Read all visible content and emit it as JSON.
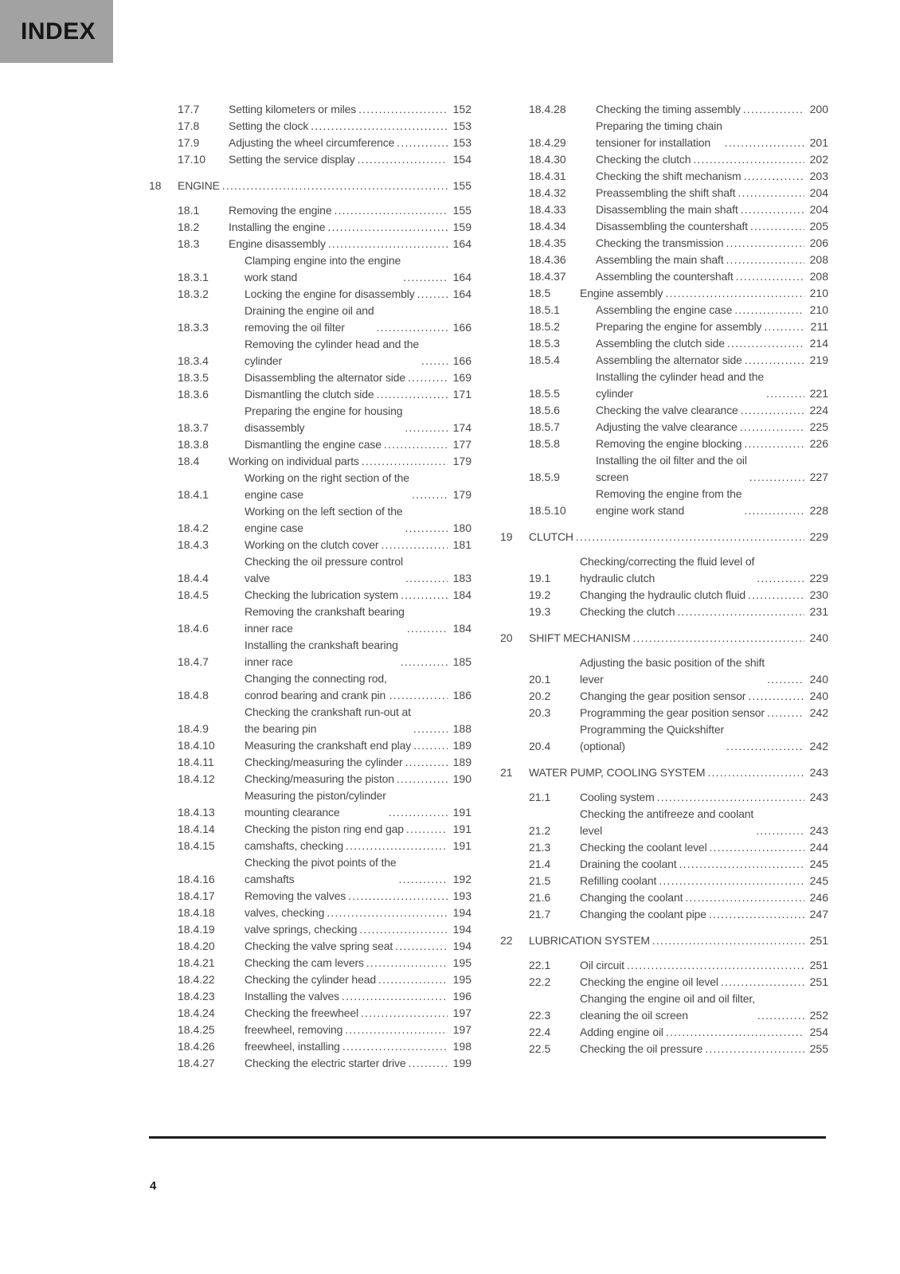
{
  "header": {
    "label": "INDEX"
  },
  "footer": {
    "page_number": "4"
  },
  "colors": {
    "index_tab_bg": "#a2a2a2",
    "body_text": "#474747"
  },
  "toc": {
    "left": [
      {
        "type": "sub2",
        "num": "17.7",
        "title_lines": [
          "Setting kilometers or miles"
        ],
        "page": "152"
      },
      {
        "type": "sub2",
        "num": "17.8",
        "title_lines": [
          "Setting the clock"
        ],
        "page": "153"
      },
      {
        "type": "sub2",
        "num": "17.9",
        "title_lines": [
          "Adjusting the wheel circumference"
        ],
        "page": "153"
      },
      {
        "type": "sub2",
        "num": "17.10",
        "title_lines": [
          "Setting the service display"
        ],
        "page": "154"
      },
      {
        "type": "chapter",
        "num": "18",
        "title_lines": [
          "ENGINE"
        ],
        "page": "155"
      },
      {
        "type": "sub2",
        "num": "18.1",
        "title_lines": [
          "Removing the engine"
        ],
        "page": "155"
      },
      {
        "type": "sub2",
        "num": "18.2",
        "title_lines": [
          "Installing the engine"
        ],
        "page": "159"
      },
      {
        "type": "sub2",
        "num": "18.3",
        "title_lines": [
          "Engine disassembly"
        ],
        "page": "164"
      },
      {
        "type": "sub3",
        "num": "18.3.1",
        "title_lines": [
          "Clamping engine into the engine",
          "work stand"
        ],
        "page": "164"
      },
      {
        "type": "sub3",
        "num": "18.3.2",
        "title_lines": [
          "Locking the engine for disassembly"
        ],
        "page": "164"
      },
      {
        "type": "sub3",
        "num": "18.3.3",
        "title_lines": [
          "Draining the engine oil and",
          "removing the oil filter"
        ],
        "page": "166"
      },
      {
        "type": "sub3",
        "num": "18.3.4",
        "title_lines": [
          "Removing the cylinder head and the",
          "cylinder"
        ],
        "page": "166"
      },
      {
        "type": "sub3",
        "num": "18.3.5",
        "title_lines": [
          "Disassembling the alternator side"
        ],
        "page": "169"
      },
      {
        "type": "sub3",
        "num": "18.3.6",
        "title_lines": [
          "Dismantling the clutch side"
        ],
        "page": "171"
      },
      {
        "type": "sub3",
        "num": "18.3.7",
        "title_lines": [
          "Preparing the engine for housing",
          "disassembly"
        ],
        "page": "174"
      },
      {
        "type": "sub3",
        "num": "18.3.8",
        "title_lines": [
          "Dismantling the engine case"
        ],
        "page": "177"
      },
      {
        "type": "sub2",
        "num": "18.4",
        "title_lines": [
          "Working on individual parts"
        ],
        "page": "179"
      },
      {
        "type": "sub3",
        "num": "18.4.1",
        "title_lines": [
          "Working on the right section of the",
          "engine case"
        ],
        "page": "179"
      },
      {
        "type": "sub3",
        "num": "18.4.2",
        "title_lines": [
          "Working on the left section of the",
          "engine case"
        ],
        "page": "180"
      },
      {
        "type": "sub3",
        "num": "18.4.3",
        "title_lines": [
          "Working on the clutch cover"
        ],
        "page": "181"
      },
      {
        "type": "sub3",
        "num": "18.4.4",
        "title_lines": [
          "Checking the oil pressure control",
          "valve"
        ],
        "page": "183"
      },
      {
        "type": "sub3",
        "num": "18.4.5",
        "title_lines": [
          "Checking the lubrication system"
        ],
        "page": "184"
      },
      {
        "type": "sub3",
        "num": "18.4.6",
        "title_lines": [
          "Removing the crankshaft bearing",
          "inner race"
        ],
        "page": "184"
      },
      {
        "type": "sub3",
        "num": "18.4.7",
        "title_lines": [
          "Installing the crankshaft bearing",
          "inner race"
        ],
        "page": "185"
      },
      {
        "type": "sub3",
        "num": "18.4.8",
        "title_lines": [
          "Changing the connecting rod,",
          "conrod bearing and crank pin"
        ],
        "page": "186"
      },
      {
        "type": "sub3",
        "num": "18.4.9",
        "title_lines": [
          "Checking the crankshaft run-out at",
          "the bearing pin"
        ],
        "page": "188"
      },
      {
        "type": "sub3",
        "num": "18.4.10",
        "title_lines": [
          "Measuring the crankshaft end play"
        ],
        "page": "189"
      },
      {
        "type": "sub3",
        "num": "18.4.11",
        "title_lines": [
          "Checking/measuring the cylinder"
        ],
        "page": "189"
      },
      {
        "type": "sub3",
        "num": "18.4.12",
        "title_lines": [
          "Checking/measuring the piston"
        ],
        "page": "190"
      },
      {
        "type": "sub3",
        "num": "18.4.13",
        "title_lines": [
          "Measuring the piston/cylinder",
          "mounting clearance"
        ],
        "page": "191"
      },
      {
        "type": "sub3",
        "num": "18.4.14",
        "title_lines": [
          "Checking the piston ring end gap"
        ],
        "page": "191"
      },
      {
        "type": "sub3",
        "num": "18.4.15",
        "title_lines": [
          "camshafts, checking"
        ],
        "page": "191"
      },
      {
        "type": "sub3",
        "num": "18.4.16",
        "title_lines": [
          "Checking the pivot points of the",
          "camshafts"
        ],
        "page": "192"
      },
      {
        "type": "sub3",
        "num": "18.4.17",
        "title_lines": [
          "Removing the valves"
        ],
        "page": "193"
      },
      {
        "type": "sub3",
        "num": "18.4.18",
        "title_lines": [
          "valves, checking"
        ],
        "page": "194"
      },
      {
        "type": "sub3",
        "num": "18.4.19",
        "title_lines": [
          "valve springs, checking"
        ],
        "page": "194"
      },
      {
        "type": "sub3",
        "num": "18.4.20",
        "title_lines": [
          "Checking the valve spring seat"
        ],
        "page": "194"
      },
      {
        "type": "sub3",
        "num": "18.4.21",
        "title_lines": [
          "Checking the cam levers"
        ],
        "page": "195"
      },
      {
        "type": "sub3",
        "num": "18.4.22",
        "title_lines": [
          "Checking the cylinder head"
        ],
        "page": "195"
      },
      {
        "type": "sub3",
        "num": "18.4.23",
        "title_lines": [
          "Installing the valves"
        ],
        "page": "196"
      },
      {
        "type": "sub3",
        "num": "18.4.24",
        "title_lines": [
          "Checking the freewheel"
        ],
        "page": "197"
      },
      {
        "type": "sub3",
        "num": "18.4.25",
        "title_lines": [
          "freewheel, removing"
        ],
        "page": "197"
      },
      {
        "type": "sub3",
        "num": "18.4.26",
        "title_lines": [
          "freewheel, installing"
        ],
        "page": "198"
      },
      {
        "type": "sub3",
        "num": "18.4.27",
        "title_lines": [
          "Checking the electric starter drive"
        ],
        "page": "199"
      }
    ],
    "right": [
      {
        "type": "sub3",
        "num": "18.4.28",
        "title_lines": [
          "Checking the timing assembly"
        ],
        "page": "200"
      },
      {
        "type": "sub3",
        "num": "18.4.29",
        "title_lines": [
          "Preparing the timing chain",
          "tensioner for installation"
        ],
        "page": "201"
      },
      {
        "type": "sub3",
        "num": "18.4.30",
        "title_lines": [
          "Checking the clutch"
        ],
        "page": "202"
      },
      {
        "type": "sub3",
        "num": "18.4.31",
        "title_lines": [
          "Checking the shift mechanism"
        ],
        "page": "203"
      },
      {
        "type": "sub3",
        "num": "18.4.32",
        "title_lines": [
          "Preassembling the shift shaft"
        ],
        "page": "204"
      },
      {
        "type": "sub3",
        "num": "18.4.33",
        "title_lines": [
          "Disassembling the main shaft"
        ],
        "page": "204"
      },
      {
        "type": "sub3",
        "num": "18.4.34",
        "title_lines": [
          "Disassembling the countershaft"
        ],
        "page": "205"
      },
      {
        "type": "sub3",
        "num": "18.4.35",
        "title_lines": [
          "Checking the transmission"
        ],
        "page": "206"
      },
      {
        "type": "sub3",
        "num": "18.4.36",
        "title_lines": [
          "Assembling the main shaft"
        ],
        "page": "208"
      },
      {
        "type": "sub3",
        "num": "18.4.37",
        "title_lines": [
          "Assembling the countershaft"
        ],
        "page": "208"
      },
      {
        "type": "sub2",
        "num": "18.5",
        "title_lines": [
          "Engine assembly"
        ],
        "page": "210"
      },
      {
        "type": "sub3",
        "num": "18.5.1",
        "title_lines": [
          "Assembling the engine case"
        ],
        "page": "210"
      },
      {
        "type": "sub3",
        "num": "18.5.2",
        "title_lines": [
          "Preparing the engine for assembly"
        ],
        "page": "211"
      },
      {
        "type": "sub3",
        "num": "18.5.3",
        "title_lines": [
          "Assembling the clutch side"
        ],
        "page": "214"
      },
      {
        "type": "sub3",
        "num": "18.5.4",
        "title_lines": [
          "Assembling the alternator side"
        ],
        "page": "219"
      },
      {
        "type": "sub3",
        "num": "18.5.5",
        "title_lines": [
          "Installing the cylinder head and the",
          "cylinder"
        ],
        "page": "221"
      },
      {
        "type": "sub3",
        "num": "18.5.6",
        "title_lines": [
          "Checking the valve clearance"
        ],
        "page": "224"
      },
      {
        "type": "sub3",
        "num": "18.5.7",
        "title_lines": [
          "Adjusting the valve clearance"
        ],
        "page": "225"
      },
      {
        "type": "sub3",
        "num": "18.5.8",
        "title_lines": [
          "Removing the engine blocking"
        ],
        "page": "226"
      },
      {
        "type": "sub3",
        "num": "18.5.9",
        "title_lines": [
          "Installing the oil filter and the oil",
          "screen"
        ],
        "page": "227"
      },
      {
        "type": "sub3",
        "num": "18.5.10",
        "title_lines": [
          "Removing the engine from the",
          "engine work stand"
        ],
        "page": "228"
      },
      {
        "type": "chapter",
        "num": "19",
        "title_lines": [
          "CLUTCH"
        ],
        "page": "229"
      },
      {
        "type": "sub2",
        "num": "19.1",
        "title_lines": [
          "Checking/correcting the fluid level of",
          "hydraulic clutch"
        ],
        "page": "229"
      },
      {
        "type": "sub2",
        "num": "19.2",
        "title_lines": [
          "Changing the hydraulic clutch fluid"
        ],
        "page": "230"
      },
      {
        "type": "sub2",
        "num": "19.3",
        "title_lines": [
          "Checking the clutch"
        ],
        "page": "231"
      },
      {
        "type": "chapter",
        "num": "20",
        "title_lines": [
          "SHIFT MECHANISM"
        ],
        "page": "240"
      },
      {
        "type": "sub2",
        "num": "20.1",
        "title_lines": [
          "Adjusting the basic position of the shift",
          "lever"
        ],
        "page": "240"
      },
      {
        "type": "sub2",
        "num": "20.2",
        "title_lines": [
          "Changing the gear position sensor"
        ],
        "page": "240"
      },
      {
        "type": "sub2",
        "num": "20.3",
        "title_lines": [
          "Programming the gear position sensor"
        ],
        "page": "242"
      },
      {
        "type": "sub2",
        "num": "20.4",
        "title_lines": [
          "Programming the Quickshifter",
          "(optional)"
        ],
        "page": "242"
      },
      {
        "type": "chapter",
        "num": "21",
        "title_lines": [
          "WATER PUMP, COOLING SYSTEM"
        ],
        "page": "243"
      },
      {
        "type": "sub2",
        "num": "21.1",
        "title_lines": [
          "Cooling system"
        ],
        "page": "243"
      },
      {
        "type": "sub2",
        "num": "21.2",
        "title_lines": [
          "Checking the antifreeze and coolant",
          "level"
        ],
        "page": "243"
      },
      {
        "type": "sub2",
        "num": "21.3",
        "title_lines": [
          "Checking the coolant level"
        ],
        "page": "244"
      },
      {
        "type": "sub2",
        "num": "21.4",
        "title_lines": [
          "Draining the coolant"
        ],
        "page": "245"
      },
      {
        "type": "sub2",
        "num": "21.5",
        "title_lines": [
          "Refilling coolant"
        ],
        "page": "245"
      },
      {
        "type": "sub2",
        "num": "21.6",
        "title_lines": [
          "Changing the coolant"
        ],
        "page": "246"
      },
      {
        "type": "sub2",
        "num": "21.7",
        "title_lines": [
          "Changing the coolant pipe"
        ],
        "page": "247"
      },
      {
        "type": "chapter",
        "num": "22",
        "title_lines": [
          "LUBRICATION SYSTEM"
        ],
        "page": "251"
      },
      {
        "type": "sub2",
        "num": "22.1",
        "title_lines": [
          "Oil circuit"
        ],
        "page": "251"
      },
      {
        "type": "sub2",
        "num": "22.2",
        "title_lines": [
          "Checking the engine oil level"
        ],
        "page": "251"
      },
      {
        "type": "sub2",
        "num": "22.3",
        "title_lines": [
          "Changing the engine oil and oil filter,",
          "cleaning the oil screen"
        ],
        "page": "252"
      },
      {
        "type": "sub2",
        "num": "22.4",
        "title_lines": [
          "Adding engine oil"
        ],
        "page": "254"
      },
      {
        "type": "sub2",
        "num": "22.5",
        "title_lines": [
          "Checking the oil pressure"
        ],
        "page": "255"
      }
    ]
  }
}
